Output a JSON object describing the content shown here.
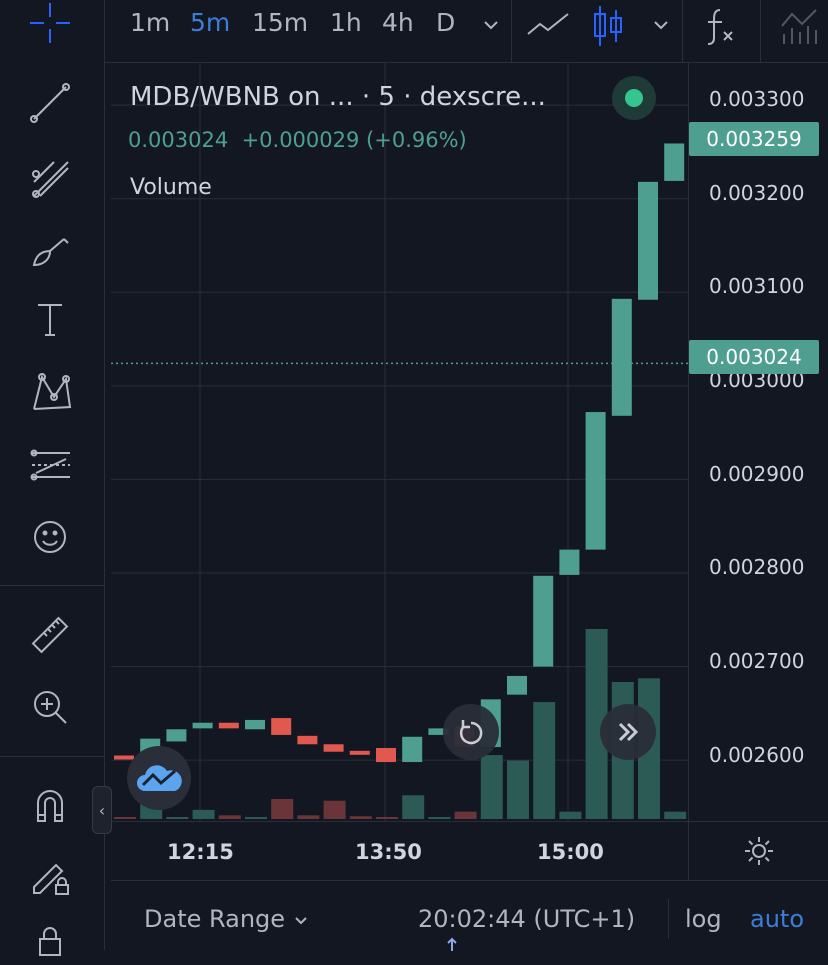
{
  "toolbar": {
    "intervals": [
      "1m",
      "5m",
      "15m",
      "1h",
      "4h",
      "D"
    ],
    "active_interval": "5m"
  },
  "legend": {
    "title": "MDB/WBNB on ... · 5 · dexscre...",
    "last_price": "0.003024",
    "change": "+0.000029",
    "change_pct": "(+0.96%)",
    "volume_label": "Volume"
  },
  "price_axis": {
    "labels": [
      "0.003300",
      "0.003200",
      "0.003100",
      "0.003000",
      "0.002900",
      "0.002800",
      "0.002700",
      "0.002600"
    ],
    "tag_current": "0.003259",
    "tag_crosshair": "0.003024"
  },
  "time_axis": {
    "labels": [
      "12:15",
      "13:50",
      "15:00"
    ]
  },
  "bottom_bar": {
    "date_range": "Date Range",
    "clock": "20:02:44 (UTC+1)",
    "log": "log",
    "auto": "auto"
  },
  "colors": {
    "up": "#4e9f90",
    "down": "#e0584e",
    "accent": "#3d7dd6",
    "background": "#131722"
  },
  "chart_data": {
    "type": "candlestick",
    "ylim": [
      0.002535,
      0.003345
    ],
    "candles": [
      {
        "o": 0.002605,
        "c": 0.002602,
        "v": 0
      },
      {
        "o": 0.002603,
        "c": 0.002623,
        "v": 2
      },
      {
        "o": 0.00262,
        "c": 0.002633,
        "v": 0
      },
      {
        "o": 0.002634,
        "c": 0.00264,
        "v": 1
      },
      {
        "o": 0.00264,
        "c": 0.002634,
        "v": 0.4
      },
      {
        "o": 0.002633,
        "c": 0.002643,
        "v": 0.2
      },
      {
        "o": 0.002645,
        "c": 0.002627,
        "v": 2.2
      },
      {
        "o": 0.002626,
        "c": 0.002617,
        "v": 0.4
      },
      {
        "o": 0.002617,
        "c": 0.002609,
        "v": 2
      },
      {
        "o": 0.00261,
        "c": 0.002606,
        "v": 0.3
      },
      {
        "o": 0.002613,
        "c": 0.002598,
        "v": 0.2
      },
      {
        "o": 0.002598,
        "c": 0.002625,
        "v": 2.6
      },
      {
        "o": 0.002627,
        "c": 0.002634,
        "v": 0.2
      },
      {
        "o": 0.002636,
        "c": 0.002614,
        "v": 0.8
      },
      {
        "o": 0.002614,
        "c": 0.002665,
        "v": 7
      },
      {
        "o": 0.00267,
        "c": 0.00269,
        "v": 6.4
      },
      {
        "o": 0.0027,
        "c": 0.002797,
        "v": 12.8
      },
      {
        "o": 0.002798,
        "c": 0.002825,
        "v": 0.8
      },
      {
        "o": 0.002825,
        "c": 0.002972,
        "v": 20.8
      },
      {
        "o": 0.002968,
        "c": 0.003093,
        "v": 15
      },
      {
        "o": 0.003092,
        "c": 0.003218,
        "v": 15.4
      },
      {
        "o": 0.003219,
        "c": 0.003259,
        "v": 0.8
      }
    ]
  }
}
